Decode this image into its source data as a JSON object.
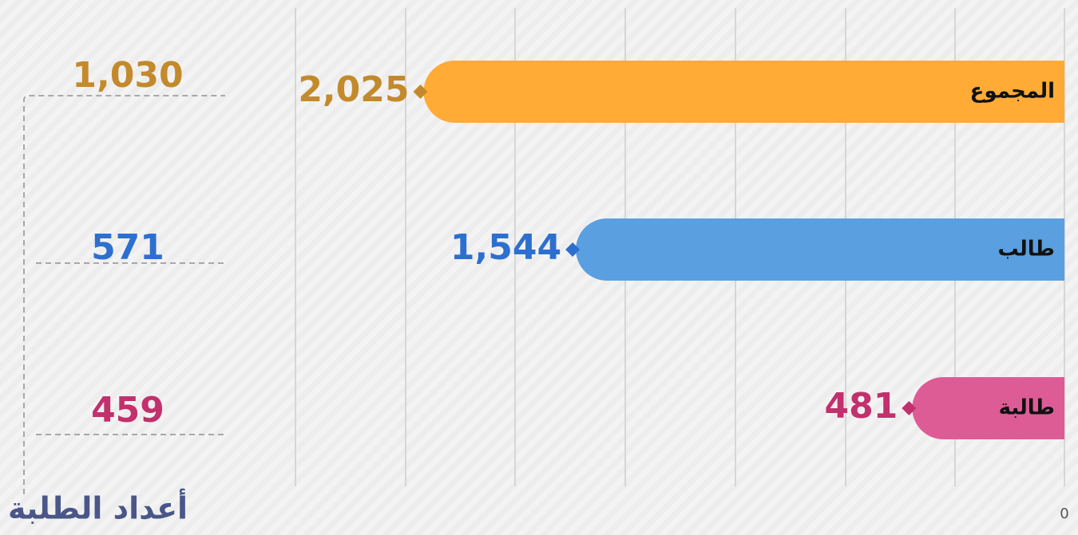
{
  "chart_data": {
    "type": "hbar",
    "categories": [
      "المجموع",
      "طالب",
      "طالبة"
    ],
    "values": [
      2025,
      1544,
      481
    ],
    "value_labels": [
      "2,025",
      "1,544",
      "481"
    ],
    "colors": [
      "#ffab36",
      "#5a9fe0",
      "#dd5c96"
    ],
    "label_colors": [
      "#c38a2c",
      "#2d6fcf",
      "#c2306d"
    ],
    "xlim": [
      0,
      2430
    ],
    "xticks": [
      0
    ],
    "x_reversed": true,
    "grid": true
  },
  "side_panel": {
    "title": "أعداد الطلبة",
    "labels": [
      "1,030",
      "571",
      "459"
    ]
  }
}
